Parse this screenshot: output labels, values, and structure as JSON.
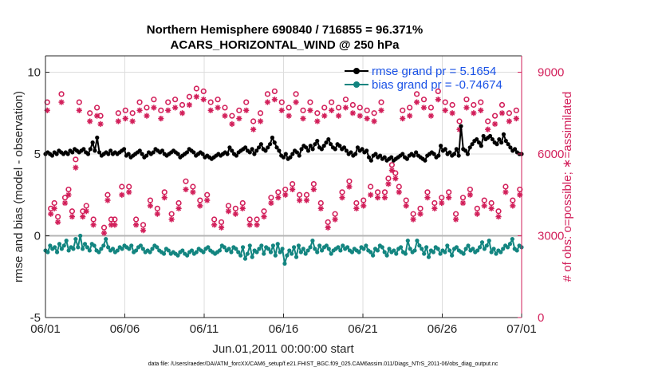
{
  "colors": {
    "rmse": "#000000",
    "bias": "#138580",
    "obs": "#d21f5a",
    "legend_text": "#1a52e6",
    "grid": "#dddddd",
    "zero_line": "#b4b4b4",
    "axis": "#262626"
  },
  "chart_data": {
    "type": "line",
    "title": "Northern Hemisphere 690840 / 716855 = 96.371%",
    "subtitle": "ACARS_HORIZONTAL_WIND @ 250 hPa",
    "xlabel": "Jun.01,2011 00:00:00 start",
    "ylabel_left": "rmse and bias (model - observation)",
    "ylabel_right": "# of obs: o=possible; ∗=assimilated",
    "footnote": "data file: /Users/raeder/DAI/ATM_forcXX/CAM6_setup/f.e21.FHIST_BGC.f09_025.CAM6assim.011/Diags_NTrS_2011-06/obs_diag_output.nc",
    "x_range_days": [
      0,
      30
    ],
    "x_ticks": [
      {
        "day": 0,
        "label": "06/01"
      },
      {
        "day": 5,
        "label": "06/06"
      },
      {
        "day": 10,
        "label": "06/11"
      },
      {
        "day": 15,
        "label": "06/16"
      },
      {
        "day": 20,
        "label": "06/21"
      },
      {
        "day": 25,
        "label": "06/26"
      },
      {
        "day": 30,
        "label": "07/01"
      }
    ],
    "ylim_left": [
      -5,
      11
    ],
    "y_ticks_left": [
      {
        "value": -5,
        "label": "-5"
      },
      {
        "value": 0,
        "label": "0"
      },
      {
        "value": 5,
        "label": "5"
      },
      {
        "value": 10,
        "label": "10"
      }
    ],
    "ylim_right": [
      0,
      9600
    ],
    "y_ticks_right": [
      {
        "value": 0,
        "label": "0"
      },
      {
        "value": 3000,
        "label": "3000"
      },
      {
        "value": 6000,
        "label": "6000"
      },
      {
        "value": 9000,
        "label": "9000"
      }
    ],
    "grid": true,
    "legend_position": "top-right",
    "legend": [
      {
        "series": "rmse",
        "label": "rmse grand pr = 5.1654"
      },
      {
        "series": "bias",
        "label": "bias grand pr = -0.74674"
      }
    ],
    "time_step_hours": 6,
    "series": [
      {
        "name": "rmse",
        "axis": "left",
        "values": [
          5.0,
          5.1,
          5.0,
          4.9,
          5.1,
          5.0,
          5.2,
          5.1,
          5.0,
          5.1,
          5.0,
          5.2,
          5.1,
          5.3,
          5.2,
          5.1,
          5.2,
          5.3,
          5.1,
          5.0,
          5.3,
          5.7,
          5.2,
          6.0,
          5.1,
          4.9,
          5.0,
          5.1,
          5.0,
          5.2,
          5.0,
          5.1,
          5.0,
          5.1,
          5.2,
          5.3,
          4.9,
          5.0,
          4.8,
          4.9,
          5.0,
          5.1,
          5.2,
          5.0,
          4.8,
          4.9,
          5.1,
          5.0,
          5.1,
          5.3,
          5.2,
          5.1,
          5.2,
          5.0,
          4.9,
          5.0,
          5.1,
          5.2,
          5.1,
          5.0,
          4.8,
          4.9,
          5.0,
          5.1,
          5.3,
          5.2,
          5.1,
          4.9,
          5.0,
          5.1,
          5.0,
          4.8,
          4.9,
          4.8,
          4.7,
          4.8,
          4.9,
          5.0,
          4.9,
          5.0,
          5.1,
          5.0,
          5.4,
          5.2,
          5.0,
          4.9,
          5.1,
          5.2,
          5.3,
          5.4,
          5.2,
          5.1,
          5.3,
          5.0,
          5.2,
          5.4,
          5.6,
          5.3,
          5.2,
          5.4,
          5.6,
          6.0,
          5.7,
          5.4,
          5.2,
          4.9,
          4.8,
          5.0,
          4.7,
          4.8,
          5.0,
          5.2,
          5.1,
          4.9,
          5.3,
          5.5,
          5.4,
          5.2,
          5.5,
          5.3,
          5.6,
          5.8,
          5.4,
          5.3,
          5.5,
          5.7,
          5.9,
          5.6,
          5.4,
          5.3,
          5.6,
          5.5,
          5.3,
          5.4,
          5.2,
          5.0,
          5.1,
          4.9,
          5.0,
          5.4,
          5.2,
          5.3,
          5.1,
          5.2,
          4.8,
          4.6,
          4.9,
          5.0,
          4.8,
          4.9,
          4.7,
          4.8,
          4.6,
          4.7,
          4.8,
          4.6,
          4.7,
          4.8,
          4.9,
          5.0,
          4.8,
          4.7,
          4.9,
          5.0,
          4.9,
          5.1,
          4.9,
          4.8,
          4.7,
          4.6,
          4.9,
          5.0,
          5.1,
          5.0,
          4.8,
          4.9,
          5.5,
          5.2,
          5.3,
          5.0,
          5.1,
          4.9,
          5.0,
          5.3,
          4.9,
          6.7,
          5.3,
          5.2,
          5.0,
          5.4,
          5.6,
          5.8,
          5.9,
          5.7,
          5.5,
          6.1,
          5.9,
          6.0,
          6.1,
          5.9,
          5.7,
          5.6,
          5.9,
          5.7,
          6.2,
          5.8,
          5.6,
          5.4,
          5.2,
          5.3,
          5.1,
          5.0,
          5.0
        ]
      },
      {
        "name": "bias",
        "axis": "left",
        "values": [
          -0.9,
          -1.0,
          -0.6,
          -0.8,
          -0.7,
          -1.0,
          -0.5,
          -0.8,
          -0.6,
          -0.3,
          -0.9,
          -0.7,
          -0.8,
          -0.2,
          -0.7,
          0.0,
          -0.8,
          -0.5,
          -0.7,
          -0.9,
          -0.5,
          -0.6,
          -0.9,
          -1.0,
          -0.8,
          -0.6,
          -0.2,
          -0.7,
          -0.9,
          -0.8,
          -1.0,
          -0.9,
          -0.7,
          -0.8,
          -0.6,
          -0.7,
          -0.8,
          -0.6,
          -1.0,
          -0.9,
          -0.7,
          -0.6,
          -0.8,
          -1.0,
          -0.9,
          -1.0,
          -0.8,
          -0.6,
          -0.7,
          -0.9,
          -1.0,
          -1.1,
          -0.8,
          -0.9,
          -1.1,
          -1.0,
          -1.1,
          -1.2,
          -1.0,
          -0.9,
          -1.1,
          -1.2,
          -1.0,
          -0.9,
          -1.1,
          -1.0,
          -0.8,
          -0.9,
          -1.0,
          -0.8,
          -0.7,
          -0.9,
          -1.0,
          -1.1,
          -1.0,
          -0.9,
          -0.6,
          -0.7,
          -0.9,
          -0.8,
          -1.0,
          -0.7,
          -0.8,
          -1.0,
          -1.2,
          -0.7,
          -1.4,
          -1.1,
          -0.6,
          -1.3,
          -0.9,
          -1.0,
          -0.8,
          -0.6,
          -1.1,
          -0.7,
          -0.8,
          -1.0,
          -0.6,
          -1.2,
          -0.5,
          -1.0,
          -0.8,
          -1.7,
          -1.2,
          -0.9,
          -1.1,
          -0.7,
          -1.3,
          -0.6,
          -1.0,
          -0.8,
          -1.1,
          -0.9,
          -0.7,
          -0.3,
          -0.8,
          -1.0,
          -0.6,
          -0.9,
          -0.7,
          -0.6,
          -0.8,
          -1.1,
          -0.9,
          -0.8,
          -0.7,
          -0.9,
          -0.6,
          -0.8,
          -0.7,
          -0.9,
          -1.0,
          -0.8,
          -0.9,
          -1.0,
          -0.7,
          -0.8,
          -0.6,
          -0.9,
          -1.0,
          -1.2,
          -0.8,
          -0.9,
          -0.6,
          -0.7,
          -1.0,
          -1.2,
          -0.8,
          -1.0,
          -0.9,
          -1.1,
          -0.8,
          -0.7,
          -1.0,
          -1.1,
          -0.3,
          -0.8,
          -1.0,
          -0.9,
          -0.3,
          -0.6,
          -0.8,
          -1.1,
          -0.7,
          -1.3,
          -0.9,
          -1.0,
          -0.7,
          -0.8,
          -1.1,
          -0.9,
          -1.0,
          -0.6,
          -0.9,
          -1.2,
          -0.8,
          -0.7,
          -0.9,
          -1.0,
          -1.1,
          -0.8,
          -0.6,
          -0.9,
          -0.8,
          -1.0,
          -0.9,
          -0.7,
          -0.4,
          -0.8,
          -0.6,
          -0.3,
          -1.0,
          -0.8,
          -1.1,
          -0.9,
          -1.0,
          -0.8,
          -0.6,
          -0.7,
          -0.5,
          -0.2,
          -0.8,
          -0.9,
          -0.6,
          -0.7
        ]
      },
      {
        "name": "obs_possible",
        "axis": "right",
        "marker": "o",
        "values": [
          7900,
          4000,
          4200,
          3700,
          8200,
          4400,
          4700,
          3900,
          5800,
          7900,
          3900,
          4100,
          7500,
          3600,
          7700,
          7400,
          3300,
          4500,
          3600,
          3600,
          7500,
          4800,
          7600,
          4800,
          7500,
          3600,
          7900,
          3400,
          7700,
          4300,
          8000,
          4000,
          7600,
          4600,
          7900,
          3800,
          8000,
          4200,
          7800,
          5000,
          8100,
          4800,
          8400,
          4300,
          8300,
          4500,
          7900,
          3600,
          8000,
          3500,
          7700,
          4100,
          7400,
          4000,
          7600,
          4200,
          7900,
          3600,
          7200,
          3600,
          7500,
          3900,
          8200,
          4400,
          8300,
          4600,
          7900,
          4700,
          7700,
          4900,
          8200,
          4500,
          7600,
          4500,
          7900,
          4900,
          7500,
          4200,
          7700,
          3500,
          7900,
          3800,
          7700,
          4600,
          8000,
          5000,
          7800,
          4200,
          7700,
          4300,
          7600,
          4800,
          7500,
          4600,
          7900,
          4600,
          5100,
          5600,
          5300,
          4800,
          7600,
          4300,
          7700,
          3800,
          8200,
          4000,
          8000,
          4600,
          7700,
          4200,
          8300,
          4400,
          7900,
          4600,
          7800,
          3800,
          7200,
          4400,
          8000,
          4700,
          7800,
          4000,
          7900,
          4300,
          7200,
          4200,
          7400,
          3900,
          7800,
          4800,
          7500,
          4300,
          7600,
          4700
        ]
      },
      {
        "name": "obs_assimilated",
        "axis": "right",
        "marker": "*",
        "values": [
          7600,
          3800,
          4000,
          3500,
          7900,
          4200,
          4500,
          3700,
          5500,
          7600,
          3700,
          3900,
          7200,
          3400,
          7400,
          7100,
          3100,
          4300,
          3400,
          3400,
          7200,
          4500,
          7300,
          4600,
          7200,
          3400,
          7600,
          3200,
          7400,
          4100,
          7700,
          3800,
          7300,
          4400,
          7600,
          3600,
          7700,
          4000,
          7500,
          4700,
          7800,
          4600,
          8100,
          4100,
          8000,
          4300,
          7600,
          3400,
          7700,
          3300,
          7400,
          3900,
          7100,
          3800,
          7300,
          4000,
          7600,
          3400,
          6900,
          3400,
          7200,
          3700,
          7900,
          4200,
          8000,
          4400,
          7600,
          4500,
          7400,
          4700,
          7900,
          4300,
          7300,
          4300,
          7600,
          4700,
          7200,
          4000,
          7400,
          3300,
          7600,
          3600,
          7400,
          4400,
          7700,
          4800,
          7500,
          4000,
          7400,
          4100,
          7300,
          4500,
          7200,
          4400,
          7600,
          4400,
          4900,
          5400,
          5100,
          4600,
          7300,
          4100,
          7400,
          3600,
          7900,
          3800,
          7700,
          4400,
          7400,
          4000,
          8000,
          4200,
          7600,
          4400,
          7500,
          3600,
          6900,
          4200,
          7700,
          4500,
          7500,
          3800,
          7600,
          4100,
          6900,
          4000,
          7100,
          3700,
          7500,
          4600,
          7200,
          4100,
          7300,
          4500
        ]
      }
    ]
  }
}
